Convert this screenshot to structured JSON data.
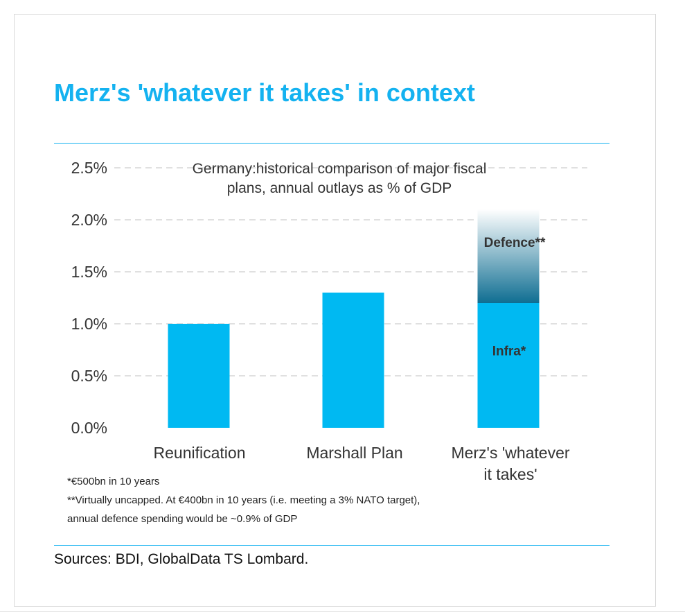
{
  "chart_data": {
    "type": "bar",
    "title": "Merz's 'whatever it takes' in context",
    "subtitle_lines": [
      "Germany:historical comparison of major fiscal",
      "plans, annual outlays as % of GDP"
    ],
    "categories": [
      {
        "label_lines": [
          "Reunification"
        ]
      },
      {
        "label_lines": [
          "Marshall Plan"
        ]
      },
      {
        "label_lines": [
          "Merz's 'whatever",
          "it takes'"
        ]
      }
    ],
    "series": [
      {
        "name": "Infra*",
        "values": [
          1.0,
          1.3,
          1.2
        ]
      },
      {
        "name": "Defence**",
        "values": [
          null,
          null,
          0.9
        ]
      }
    ],
    "y_ticks": [
      "0.0%",
      "0.5%",
      "1.0%",
      "1.5%",
      "2.0%",
      "2.5%"
    ],
    "ylim": [
      0,
      2.5
    ],
    "grid": true,
    "colors": {
      "bar": "#00b9f2",
      "defence_dark": "#0f6e92",
      "defence_light": "#ffffff",
      "grid": "#d6d6d6",
      "accent": "#14b2f0"
    }
  },
  "notes": [
    "*€500bn in 10 years",
    "**Virtually uncapped. At €400bn in 10 years (i.e. meeting a 3% NATO target),",
    "annual defence spending would be ~0.9% of GDP"
  ],
  "sources": "Sources: BDI, GlobalData TS Lombard."
}
